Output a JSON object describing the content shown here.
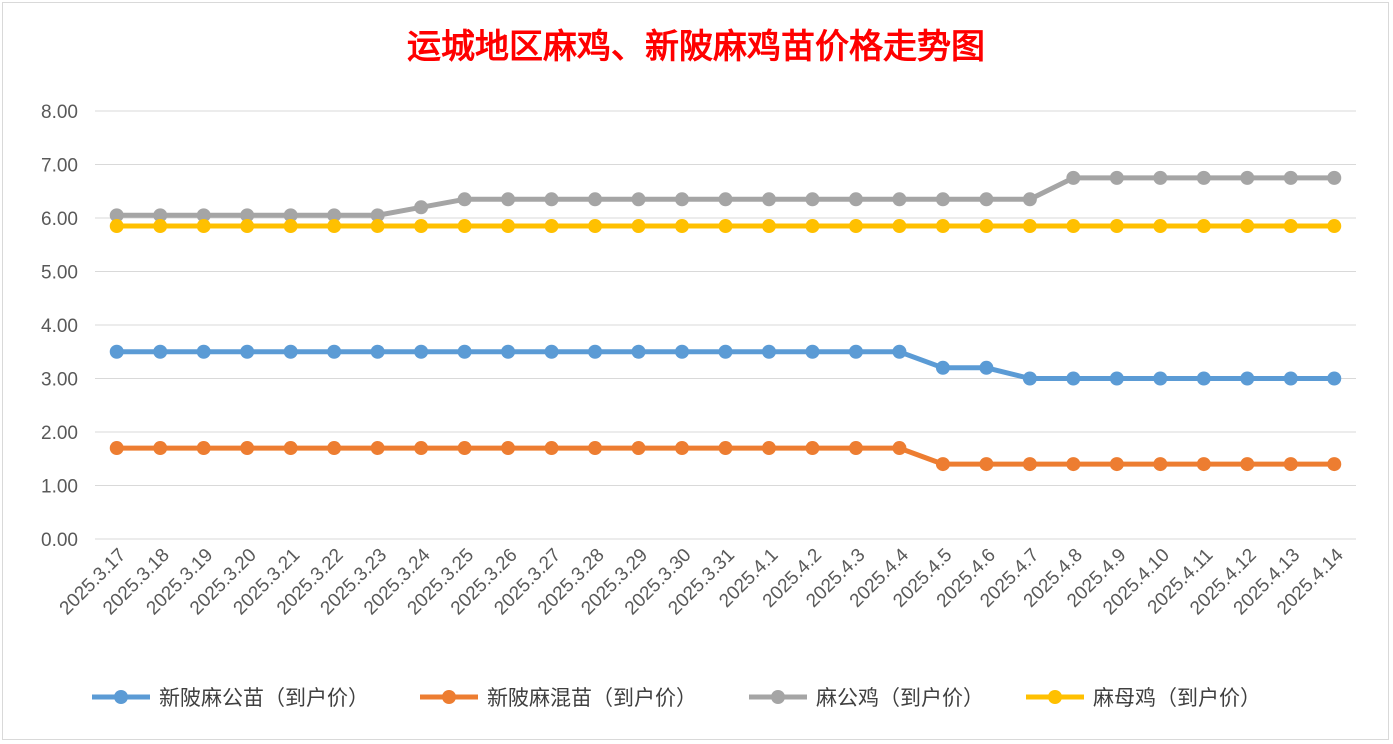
{
  "chart_data": {
    "type": "line",
    "title": "运城地区麻鸡、新陂麻鸡苗价格走势图",
    "xlabel": "",
    "ylabel": "",
    "ylim": [
      0,
      8
    ],
    "yticks": [
      "0.00",
      "1.00",
      "2.00",
      "3.00",
      "4.00",
      "5.00",
      "6.00",
      "7.00",
      "8.00"
    ],
    "grid": true,
    "legend_position": "bottom",
    "categories": [
      "2025.3.17",
      "2025.3.18",
      "2025.3.19",
      "2025.3.20",
      "2025.3.21",
      "2025.3.22",
      "2025.3.23",
      "2025.3.24",
      "2025.3.25",
      "2025.3.26",
      "2025.3.27",
      "2025.3.28",
      "2025.3.29",
      "2025.3.30",
      "2025.3.31",
      "2025.4.1",
      "2025.4.2",
      "2025.4.3",
      "2025.4.4",
      "2025.4.5",
      "2025.4.6",
      "2025.4.7",
      "2025.4.8",
      "2025.4.9",
      "2025.4.10",
      "2025.4.11",
      "2025.4.12",
      "2025.4.13",
      "2025.4.14"
    ],
    "series": [
      {
        "name": "新陂麻公苗（到户价）",
        "color": "#5b9bd5",
        "values": [
          3.5,
          3.5,
          3.5,
          3.5,
          3.5,
          3.5,
          3.5,
          3.5,
          3.5,
          3.5,
          3.5,
          3.5,
          3.5,
          3.5,
          3.5,
          3.5,
          3.5,
          3.5,
          3.5,
          3.2,
          3.2,
          3.0,
          3.0,
          3.0,
          3.0,
          3.0,
          3.0,
          3.0,
          3.0
        ]
      },
      {
        "name": "新陂麻混苗（到户价）",
        "color": "#ed7d31",
        "values": [
          1.7,
          1.7,
          1.7,
          1.7,
          1.7,
          1.7,
          1.7,
          1.7,
          1.7,
          1.7,
          1.7,
          1.7,
          1.7,
          1.7,
          1.7,
          1.7,
          1.7,
          1.7,
          1.7,
          1.4,
          1.4,
          1.4,
          1.4,
          1.4,
          1.4,
          1.4,
          1.4,
          1.4,
          1.4
        ]
      },
      {
        "name": "麻公鸡（到户价）",
        "color": "#a5a5a5",
        "values": [
          6.05,
          6.05,
          6.05,
          6.05,
          6.05,
          6.05,
          6.05,
          6.2,
          6.35,
          6.35,
          6.35,
          6.35,
          6.35,
          6.35,
          6.35,
          6.35,
          6.35,
          6.35,
          6.35,
          6.35,
          6.35,
          6.35,
          6.75,
          6.75,
          6.75,
          6.75,
          6.75,
          6.75,
          6.75
        ]
      },
      {
        "name": "麻母鸡（到户价）",
        "color": "#ffc000",
        "values": [
          5.85,
          5.85,
          5.85,
          5.85,
          5.85,
          5.85,
          5.85,
          5.85,
          5.85,
          5.85,
          5.85,
          5.85,
          5.85,
          5.85,
          5.85,
          5.85,
          5.85,
          5.85,
          5.85,
          5.85,
          5.85,
          5.85,
          5.85,
          5.85,
          5.85,
          5.85,
          5.85,
          5.85,
          5.85
        ]
      }
    ]
  }
}
